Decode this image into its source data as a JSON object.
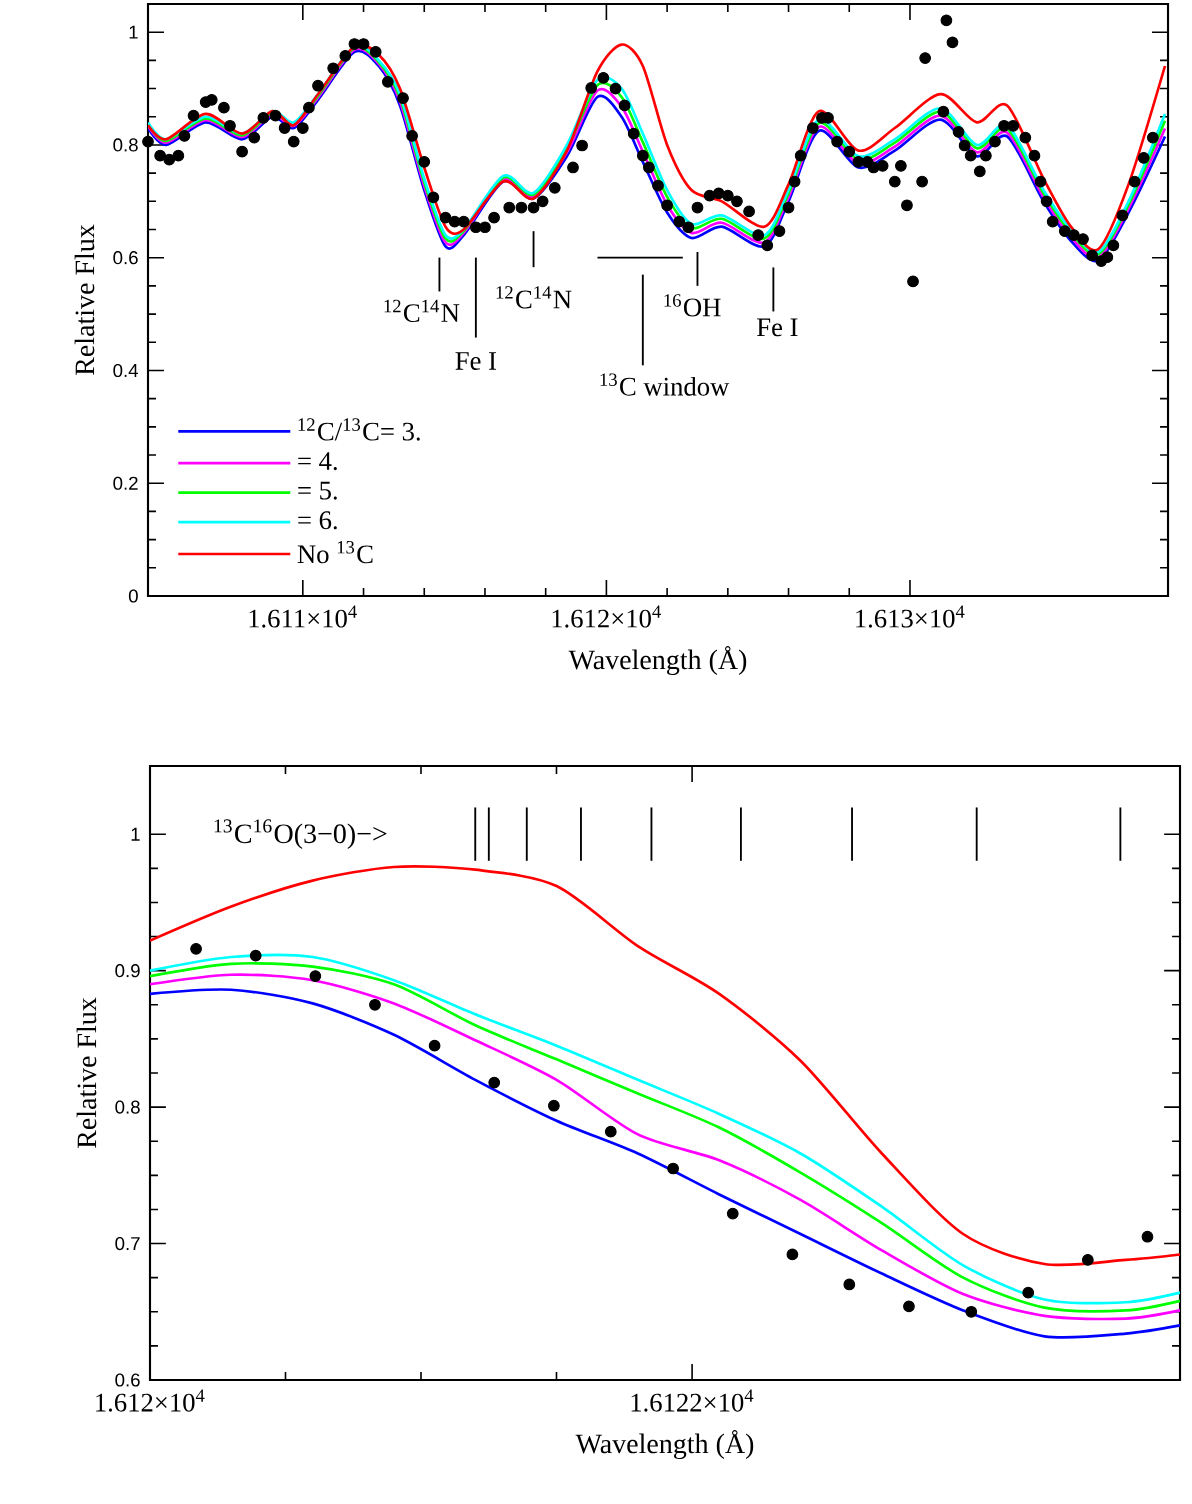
{
  "chart_data": [
    {
      "type": "line",
      "xlabel": "Wavelength (Å)",
      "ylabel": "Relative Flux",
      "xlim": [
        16104.9,
        16138.5
      ],
      "ylim": [
        0,
        1.05
      ],
      "xticks": [
        {
          "value": 16110,
          "label": "1.611×10$^{4}$"
        },
        {
          "value": 16120,
          "label": "1.612×10$^{4}$"
        },
        {
          "value": 16130,
          "label": "1.613×10$^{4}$"
        }
      ],
      "yticks": [
        0,
        0.2,
        0.4,
        0.6,
        0.8,
        1
      ],
      "legend": "bottom left",
      "series": [
        {
          "type": "scatter",
          "color": "#000000",
          "x": [
            16104.9,
            16105.3,
            16105.6,
            16105.9,
            16106.1,
            16106.4,
            16106.8,
            16107.0,
            16107.4,
            16107.6,
            16108.0,
            16108.4,
            16108.7,
            16109.1,
            16109.4,
            16109.7,
            16110.0,
            16110.2,
            16110.5,
            16111.0,
            16111.4,
            16111.7,
            16112.0,
            16112.4,
            16112.8,
            16113.3,
            16113.6,
            16114.0,
            16114.3,
            16114.7,
            16115.0,
            16115.3,
            16115.7,
            16116.0,
            16116.3,
            16116.8,
            16117.2,
            16117.6,
            16117.9,
            16118.3,
            16118.9,
            16119.2,
            16119.5,
            16119.9,
            16120.3,
            16120.6,
            16120.9,
            16121.2,
            16121.4,
            16121.7,
            16122.0,
            16122.4,
            16122.7,
            16123.0,
            16123.4,
            16123.7,
            16124.0,
            16124.3,
            16124.7,
            16125.0,
            16125.3,
            16125.7,
            16126.0,
            16126.2,
            16126.4,
            16126.8,
            16127.1,
            16127.3,
            16127.6,
            16128.0,
            16128.3,
            16128.6,
            16128.8,
            16129.1,
            16129.5,
            16129.7,
            16129.9,
            16130.1,
            16130.4,
            16130.5,
            16131.1,
            16131.2,
            16131.4,
            16131.6,
            16131.8,
            16132.0,
            16132.3,
            16132.5,
            16132.8,
            16133.1,
            16133.4,
            16133.8,
            16134.1,
            16134.3,
            16134.5,
            16134.7,
            16135.1,
            16135.4,
            16135.7,
            16136.0,
            16136.3,
            16136.5,
            16136.7,
            16137.0,
            16137.4,
            16137.7,
            16138.0
          ],
          "values": [
            0.806,
            0.781,
            0.774,
            0.781,
            0.816,
            0.852,
            0.876,
            0.88,
            0.866,
            0.834,
            0.788,
            0.813,
            0.848,
            0.852,
            0.83,
            0.806,
            0.83,
            0.866,
            0.905,
            0.936,
            0.958,
            0.979,
            0.979,
            0.965,
            0.912,
            0.883,
            0.816,
            0.77,
            0.707,
            0.671,
            0.664,
            0.664,
            0.654,
            0.654,
            0.671,
            0.689,
            0.689,
            0.689,
            0.7,
            0.724,
            0.76,
            0.799,
            0.901,
            0.919,
            0.9,
            0.87,
            0.82,
            0.781,
            0.76,
            0.728,
            0.693,
            0.664,
            0.654,
            0.689,
            0.71,
            0.714,
            0.71,
            0.7,
            0.682,
            0.64,
            0.622,
            0.647,
            0.689,
            0.735,
            0.781,
            0.83,
            0.848,
            0.848,
            0.806,
            0.788,
            0.77,
            0.77,
            0.76,
            0.763,
            0.735,
            0.763,
            0.693,
            0.558,
            0.735,
            0.954,
            0.859,
            1.021,
            0.982,
            0.823,
            0.799,
            0.781,
            0.753,
            0.781,
            0.806,
            0.834,
            0.834,
            0.813,
            0.781,
            0.735,
            0.7,
            0.664,
            0.647,
            0.64,
            0.633,
            0.604,
            0.594,
            0.601,
            0.622,
            0.675,
            0.735,
            0.777,
            0.813
          ]
        },
        {
          "name": "$^{12}$C/$^{13}$C= 3.",
          "color": "#0000ff",
          "x": [
            16104.9,
            16105.5,
            16106.8,
            16108.0,
            16109.0,
            16109.7,
            16110.5,
            16111.7,
            16112.5,
            16113.2,
            16114.0,
            16114.7,
            16115.3,
            16116.6,
            16117.6,
            16118.7,
            16119.7,
            16120.5,
            16121.2,
            16122.0,
            16122.8,
            16123.8,
            16125.2,
            16126.0,
            16127.0,
            16128.3,
            16129.5,
            16131.0,
            16132.2,
            16133.2,
            16134.4,
            16135.3,
            16136.2,
            16137.2,
            16138.4
          ],
          "values": [
            0.83,
            0.8,
            0.84,
            0.81,
            0.85,
            0.83,
            0.88,
            0.965,
            0.94,
            0.87,
            0.72,
            0.62,
            0.64,
            0.735,
            0.705,
            0.78,
            0.885,
            0.85,
            0.77,
            0.68,
            0.635,
            0.655,
            0.62,
            0.7,
            0.825,
            0.76,
            0.79,
            0.845,
            0.78,
            0.815,
            0.7,
            0.63,
            0.595,
            0.68,
            0.815
          ]
        },
        {
          "name": "= 4.",
          "color": "#ff00ff",
          "x": [
            16104.9,
            16105.5,
            16106.8,
            16108.0,
            16109.0,
            16109.7,
            16110.5,
            16111.7,
            16112.5,
            16113.2,
            16114.0,
            16114.7,
            16115.3,
            16116.6,
            16117.6,
            16118.7,
            16119.7,
            16120.5,
            16121.2,
            16122.0,
            16122.8,
            16123.8,
            16125.2,
            16126.0,
            16127.0,
            16128.3,
            16129.5,
            16131.0,
            16132.2,
            16133.2,
            16134.4,
            16135.3,
            16136.2,
            16137.2,
            16138.4
          ],
          "values": [
            0.834,
            0.804,
            0.844,
            0.814,
            0.854,
            0.834,
            0.884,
            0.969,
            0.944,
            0.877,
            0.727,
            0.627,
            0.644,
            0.739,
            0.709,
            0.787,
            0.896,
            0.868,
            0.788,
            0.694,
            0.644,
            0.662,
            0.627,
            0.707,
            0.832,
            0.767,
            0.797,
            0.852,
            0.787,
            0.822,
            0.707,
            0.637,
            0.6,
            0.687,
            0.829
          ]
        },
        {
          "name": "= 5.",
          "color": "#00ff00",
          "x": [
            16104.9,
            16105.5,
            16106.8,
            16108.0,
            16109.0,
            16109.7,
            16110.5,
            16111.7,
            16112.5,
            16113.2,
            16114.0,
            16114.7,
            16115.3,
            16116.6,
            16117.6,
            16118.7,
            16119.7,
            16120.5,
            16121.2,
            16122.0,
            16122.8,
            16123.8,
            16125.2,
            16126.0,
            16127.0,
            16128.3,
            16129.5,
            16131.0,
            16132.2,
            16133.2,
            16134.4,
            16135.3,
            16136.2,
            16137.2,
            16138.4
          ],
          "values": [
            0.837,
            0.807,
            0.847,
            0.817,
            0.857,
            0.837,
            0.887,
            0.972,
            0.947,
            0.884,
            0.734,
            0.634,
            0.647,
            0.742,
            0.712,
            0.794,
            0.906,
            0.885,
            0.805,
            0.708,
            0.653,
            0.669,
            0.634,
            0.714,
            0.839,
            0.774,
            0.804,
            0.859,
            0.794,
            0.829,
            0.714,
            0.644,
            0.606,
            0.694,
            0.843
          ]
        },
        {
          "name": "= 6.",
          "color": "#00ffff",
          "x": [
            16104.9,
            16105.5,
            16106.8,
            16108.0,
            16109.0,
            16109.7,
            16110.5,
            16111.7,
            16112.5,
            16113.2,
            16114.0,
            16114.7,
            16115.3,
            16116.6,
            16117.6,
            16118.7,
            16119.7,
            16120.5,
            16121.2,
            16122.0,
            16122.8,
            16123.8,
            16125.2,
            16126.0,
            16127.0,
            16128.3,
            16129.5,
            16131.0,
            16132.2,
            16133.2,
            16134.4,
            16135.3,
            16136.2,
            16137.2,
            16138.4
          ],
          "values": [
            0.84,
            0.81,
            0.85,
            0.82,
            0.86,
            0.84,
            0.89,
            0.975,
            0.95,
            0.89,
            0.74,
            0.64,
            0.65,
            0.745,
            0.715,
            0.8,
            0.915,
            0.9,
            0.82,
            0.72,
            0.66,
            0.675,
            0.64,
            0.72,
            0.845,
            0.78,
            0.81,
            0.865,
            0.8,
            0.835,
            0.72,
            0.65,
            0.61,
            0.7,
            0.855
          ]
        },
        {
          "name": "No $^{13}$C",
          "color": "#ff0000",
          "x": [
            16104.9,
            16105.5,
            16106.8,
            16108.0,
            16109.0,
            16109.7,
            16110.5,
            16111.7,
            16112.5,
            16113.2,
            16114.0,
            16114.7,
            16115.3,
            16116.6,
            16117.6,
            16118.7,
            16119.7,
            16120.5,
            16121.2,
            16122.0,
            16122.8,
            16123.8,
            16125.2,
            16126.0,
            16127.0,
            16128.3,
            16129.5,
            16131.0,
            16132.2,
            16133.2,
            16134.4,
            16135.3,
            16136.2,
            16137.2,
            16138.4
          ],
          "values": [
            0.835,
            0.81,
            0.855,
            0.82,
            0.86,
            0.835,
            0.89,
            0.975,
            0.96,
            0.9,
            0.76,
            0.655,
            0.65,
            0.735,
            0.705,
            0.79,
            0.93,
            0.978,
            0.94,
            0.8,
            0.72,
            0.7,
            0.655,
            0.73,
            0.86,
            0.79,
            0.83,
            0.89,
            0.84,
            0.87,
            0.74,
            0.655,
            0.615,
            0.73,
            0.94
          ]
        }
      ],
      "ref_lines": [
        {
          "axis": "x",
          "value": 16114.5,
          "label": "$^{12}$C$^{14}$N"
        },
        {
          "axis": "x",
          "value": 16115.7,
          "label": "Fe I"
        },
        {
          "axis": "x",
          "value": 16117.6,
          "label": "$^{12}$C$^{14}$N"
        },
        {
          "axis": "x",
          "value": 16121.2,
          "label": "$^{13}$C window"
        },
        {
          "axis": "x",
          "value": 16123.0,
          "label": "$^{16}$OH"
        },
        {
          "axis": "x",
          "value": 16125.5,
          "label": "Fe I"
        }
      ]
    },
    {
      "type": "line",
      "xlabel": "Wavelength (Å)",
      "ylabel": "Relative Flux",
      "xlim": [
        16120,
        16123.8
      ],
      "ylim": [
        0.6,
        1.05
      ],
      "xticks": [
        {
          "value": 16120,
          "label": "1.612×10$^{4}$"
        },
        {
          "value": 16122,
          "label": "1.6122×10$^{4}$"
        }
      ],
      "yticks": [
        0.6,
        0.7,
        0.8,
        0.9,
        1
      ],
      "series": [
        {
          "type": "scatter",
          "color": "#000000",
          "x": [
            16120.17,
            16120.39,
            16120.61,
            16120.83,
            16121.05,
            16121.27,
            16121.49,
            16121.7,
            16121.93,
            16122.15,
            16122.37,
            16122.58,
            16122.8,
            16123.03,
            16123.24,
            16123.46,
            16123.68
          ],
          "values": [
            0.916,
            0.911,
            0.896,
            0.875,
            0.845,
            0.818,
            0.801,
            0.782,
            0.755,
            0.722,
            0.692,
            0.67,
            0.654,
            0.65,
            0.664,
            0.688,
            0.705
          ]
        },
        {
          "color": "#0000ff",
          "x": [
            16120,
            16120.3,
            16120.6,
            16120.9,
            16121.2,
            16121.5,
            16121.8,
            16122.1,
            16122.4,
            16122.7,
            16123.0,
            16123.3,
            16123.6,
            16123.8
          ],
          "values": [
            0.883,
            0.886,
            0.876,
            0.853,
            0.82,
            0.79,
            0.766,
            0.736,
            0.707,
            0.678,
            0.651,
            0.632,
            0.634,
            0.64
          ]
        },
        {
          "color": "#ff00ff",
          "x": [
            16120,
            16120.3,
            16120.6,
            16120.9,
            16121.2,
            16121.5,
            16121.8,
            16122.1,
            16122.4,
            16122.7,
            16123.0,
            16123.3,
            16123.6,
            16123.8
          ],
          "values": [
            0.89,
            0.897,
            0.893,
            0.876,
            0.849,
            0.82,
            0.78,
            0.761,
            0.732,
            0.695,
            0.663,
            0.647,
            0.645,
            0.651
          ]
        },
        {
          "color": "#00ff00",
          "x": [
            16120,
            16120.3,
            16120.6,
            16120.9,
            16121.2,
            16121.5,
            16121.8,
            16122.1,
            16122.4,
            16122.7,
            16123.0,
            16123.3,
            16123.6,
            16123.8
          ],
          "values": [
            0.896,
            0.905,
            0.903,
            0.89,
            0.86,
            0.835,
            0.81,
            0.785,
            0.752,
            0.715,
            0.675,
            0.653,
            0.651,
            0.658
          ]
        },
        {
          "color": "#00ffff",
          "x": [
            16120,
            16120.3,
            16120.6,
            16120.9,
            16121.2,
            16121.5,
            16121.8,
            16122.1,
            16122.4,
            16122.7,
            16123.0,
            16123.3,
            16123.6,
            16123.8
          ],
          "values": [
            0.9,
            0.91,
            0.91,
            0.893,
            0.868,
            0.845,
            0.82,
            0.795,
            0.766,
            0.727,
            0.684,
            0.659,
            0.657,
            0.664
          ]
        },
        {
          "color": "#ff0000",
          "x": [
            16120,
            16120.3,
            16120.6,
            16120.9,
            16121.2,
            16121.5,
            16121.8,
            16122.1,
            16122.4,
            16122.7,
            16123.0,
            16123.3,
            16123.6,
            16123.8
          ],
          "values": [
            0.922,
            0.947,
            0.966,
            0.976,
            0.974,
            0.962,
            0.918,
            0.883,
            0.834,
            0.766,
            0.707,
            0.685,
            0.688,
            0.692
          ]
        }
      ],
      "ref_lines": [
        {
          "axis": "x",
          "value": 16121.2
        },
        {
          "axis": "x",
          "value": 16121.25
        },
        {
          "axis": "x",
          "value": 16121.39
        },
        {
          "axis": "x",
          "value": 16121.59
        },
        {
          "axis": "x",
          "value": 16121.85
        },
        {
          "axis": "x",
          "value": 16122.18
        },
        {
          "axis": "x",
          "value": 16122.59
        },
        {
          "axis": "x",
          "value": 16123.05
        },
        {
          "axis": "x",
          "value": 16123.58
        }
      ],
      "annotations": [
        "$^{13}$C$^{16}$O(3−0)−>"
      ]
    }
  ]
}
